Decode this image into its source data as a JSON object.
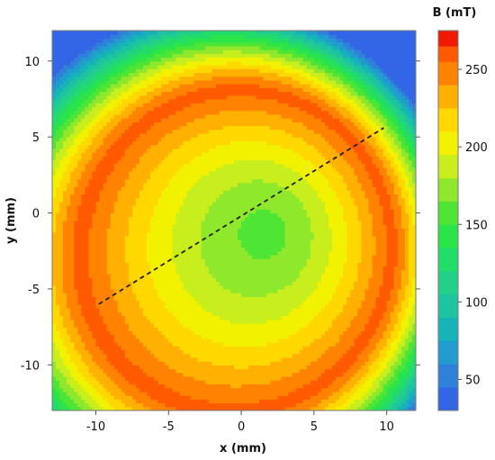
{
  "chart_data": {
    "type": "heatmap",
    "title": "",
    "xlabel": "x (mm)",
    "ylabel": "y (mm)",
    "xlim": [
      -13,
      12
    ],
    "ylim": [
      -13,
      12
    ],
    "x_ticks": [
      -10,
      -5,
      0,
      5,
      10
    ],
    "y_ticks": [
      10,
      5,
      0,
      -5,
      -10
    ],
    "x_tick_labels": [
      "-10",
      "-5",
      "0",
      "5",
      "10"
    ],
    "y_tick_labels": [
      "10",
      "5",
      "0",
      "-5",
      "-10"
    ],
    "colorbar": {
      "label": "B (mT)",
      "ticks": [
        50,
        100,
        150,
        200,
        250
      ],
      "tick_labels": [
        "50",
        "100",
        "150",
        "200",
        "250"
      ],
      "range": [
        30,
        275
      ],
      "levels": [
        {
          "from": 30,
          "to": 45,
          "color": "#3366e6"
        },
        {
          "from": 45,
          "to": 60,
          "color": "#2f80d8"
        },
        {
          "from": 60,
          "to": 75,
          "color": "#229ccf"
        },
        {
          "from": 75,
          "to": 90,
          "color": "#16b3b8"
        },
        {
          "from": 90,
          "to": 105,
          "color": "#1ec4a0"
        },
        {
          "from": 105,
          "to": 120,
          "color": "#22d08a"
        },
        {
          "from": 120,
          "to": 135,
          "color": "#22dc6a"
        },
        {
          "from": 135,
          "to": 150,
          "color": "#2ae44a"
        },
        {
          "from": 150,
          "to": 165,
          "color": "#4fe535"
        },
        {
          "from": 165,
          "to": 180,
          "color": "#8fe82c"
        },
        {
          "from": 180,
          "to": 195,
          "color": "#c8ee1e"
        },
        {
          "from": 195,
          "to": 210,
          "color": "#f2f200"
        },
        {
          "from": 210,
          "to": 225,
          "color": "#ffd800"
        },
        {
          "from": 225,
          "to": 240,
          "color": "#ffb000"
        },
        {
          "from": 240,
          "to": 255,
          "color": "#ff8200"
        },
        {
          "from": 255,
          "to": 265,
          "color": "#ff5a00"
        },
        {
          "from": 265,
          "to": 275,
          "color": "#f01a00"
        }
      ]
    },
    "field_model": {
      "center_x": 1.8,
      "center_y": -1.2,
      "b_min": 160,
      "b_ring": 262,
      "ring_radius": 10.2,
      "skew_mm": 2.8
    },
    "dashed_line": {
      "x1": -9.8,
      "y1": -6.0,
      "x2": 9.8,
      "y2": 5.6,
      "color": "#222222"
    }
  }
}
